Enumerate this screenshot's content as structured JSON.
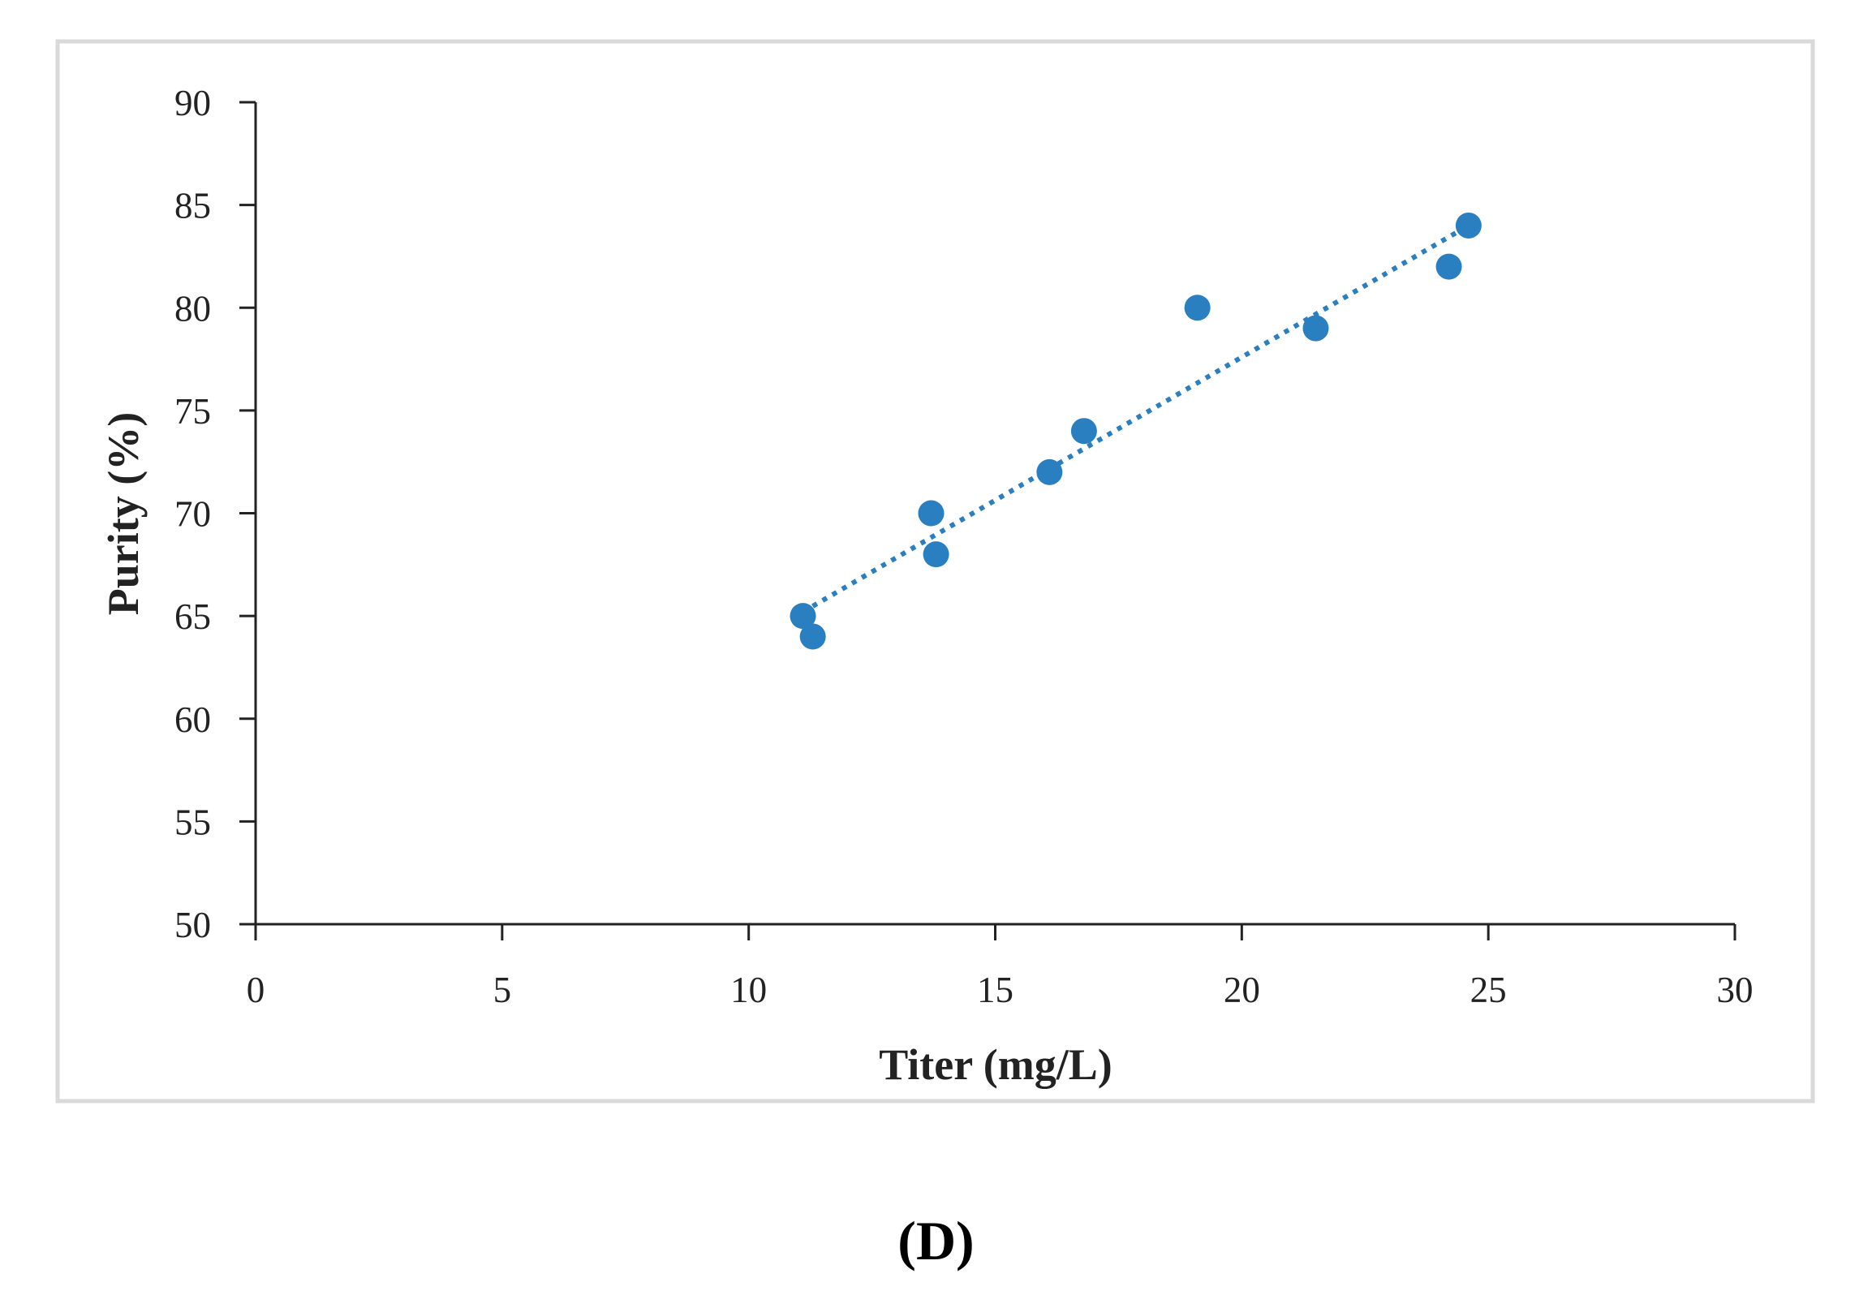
{
  "chart_data": {
    "type": "scatter",
    "title": "",
    "xlabel": "Titer (mg/L)",
    "ylabel": "Purity (%)",
    "xlim": [
      0,
      30
    ],
    "ylim": [
      50,
      90
    ],
    "xticks": [
      0,
      5,
      10,
      15,
      20,
      25,
      30
    ],
    "yticks": [
      50,
      55,
      60,
      65,
      70,
      75,
      80,
      85,
      90
    ],
    "grid": false,
    "legend": "none",
    "series": [
      {
        "color": "#2a7fc0",
        "points": [
          {
            "x": 11.1,
            "y": 65
          },
          {
            "x": 11.3,
            "y": 64
          },
          {
            "x": 13.7,
            "y": 70
          },
          {
            "x": 13.8,
            "y": 68
          },
          {
            "x": 16.1,
            "y": 72
          },
          {
            "x": 16.8,
            "y": 74
          },
          {
            "x": 19.1,
            "y": 80
          },
          {
            "x": 21.5,
            "y": 79
          },
          {
            "x": 24.2,
            "y": 82
          },
          {
            "x": 24.6,
            "y": 84
          }
        ]
      }
    ],
    "trendline": {
      "type": "linear",
      "style": "dotted",
      "color": "#2a7fc0",
      "from": {
        "x": 11.1,
        "y": 65.2
      },
      "to": {
        "x": 24.6,
        "y": 84.0
      }
    }
  },
  "panel_label": "(D)"
}
